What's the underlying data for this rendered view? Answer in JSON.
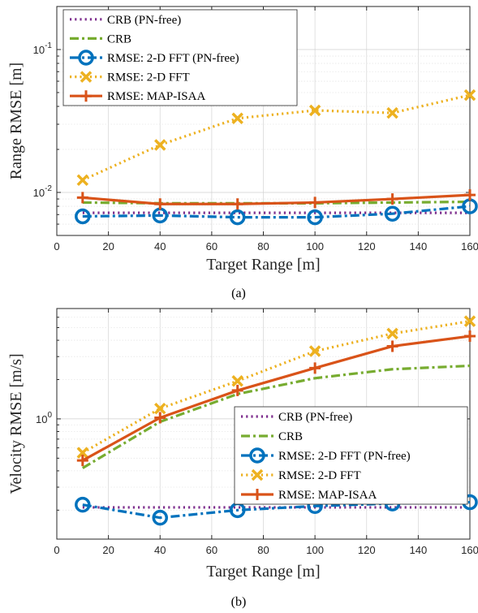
{
  "colors": {
    "crb_pnfree": "#7E2F8E",
    "crb": "#77AC30",
    "fft_pnfree": "#0072BD",
    "fft": "#EDB120",
    "map": "#D95319"
  },
  "chart_data": [
    {
      "type": "line",
      "caption": "(a)",
      "xlabel": "Target Range [m]",
      "ylabel": "Range RMSE [m]",
      "yscale": "log",
      "xlim": [
        0,
        160
      ],
      "ylim": [
        0.005,
        0.2
      ],
      "x_ticks": [
        0,
        20,
        40,
        60,
        80,
        100,
        120,
        140,
        160
      ],
      "x_tick_labels": [
        "0",
        "20",
        "40",
        "60",
        "80",
        "100",
        "120",
        "140",
        "160"
      ],
      "y_ticks": [
        0.01,
        0.1
      ],
      "y_tick_labels": [
        {
          "base": "10",
          "exp": "-2"
        },
        {
          "base": "10",
          "exp": "-1"
        }
      ],
      "grid": true,
      "legend_position": "top-left",
      "x": [
        10,
        40,
        70,
        100,
        130,
        160
      ],
      "series": [
        {
          "name": "CRB (PN-free)",
          "values": [
            0.0072,
            0.0072,
            0.0072,
            0.0072,
            0.0072,
            0.0072
          ],
          "style": "dotted",
          "marker": "none",
          "color": "crb_pnfree"
        },
        {
          "name": "CRB",
          "values": [
            0.0085,
            0.0084,
            0.0084,
            0.0084,
            0.0085,
            0.0086
          ],
          "style": "dashdot",
          "marker": "none",
          "color": "crb"
        },
        {
          "name": "RMSE: 2-D FFT (PN-free)",
          "values": [
            0.0068,
            0.0069,
            0.0067,
            0.0067,
            0.0071,
            0.008
          ],
          "style": "dashdot",
          "marker": "circle",
          "color": "fft_pnfree"
        },
        {
          "name": "RMSE: 2-D FFT",
          "values": [
            0.0122,
            0.0215,
            0.033,
            0.0375,
            0.036,
            0.048
          ],
          "style": "dotted",
          "marker": "x",
          "color": "fft"
        },
        {
          "name": "RMSE: MAP-ISAA",
          "values": [
            0.0092,
            0.0083,
            0.0083,
            0.0085,
            0.009,
            0.0096
          ],
          "style": "solid",
          "marker": "plus",
          "color": "map"
        }
      ]
    },
    {
      "type": "line",
      "caption": "(b)",
      "xlabel": "Target Range [m]",
      "ylabel": "Velocity RMSE [m/s]",
      "yscale": "log",
      "xlim": [
        0,
        160
      ],
      "ylim": [
        0.12,
        7
      ],
      "x_ticks": [
        0,
        20,
        40,
        60,
        80,
        100,
        120,
        140,
        160
      ],
      "x_tick_labels": [
        "0",
        "20",
        "40",
        "60",
        "80",
        "100",
        "120",
        "140",
        "160"
      ],
      "y_ticks": [
        1
      ],
      "y_tick_labels": [
        {
          "base": "10",
          "exp": "0"
        }
      ],
      "grid": true,
      "legend_position": "bottom-right",
      "x": [
        10,
        40,
        70,
        100,
        130,
        160
      ],
      "series": [
        {
          "name": "CRB (PN-free)",
          "values": [
            0.21,
            0.21,
            0.21,
            0.21,
            0.21,
            0.21
          ],
          "style": "dotted",
          "marker": "none",
          "color": "crb_pnfree"
        },
        {
          "name": "CRB",
          "values": [
            0.42,
            0.95,
            1.55,
            2.05,
            2.4,
            2.55
          ],
          "style": "dashdot",
          "marker": "none",
          "color": "crb"
        },
        {
          "name": "RMSE: 2-D FFT (PN-free)",
          "values": [
            0.22,
            0.175,
            0.2,
            0.215,
            0.225,
            0.23
          ],
          "style": "dashdot",
          "marker": "circle",
          "color": "fft_pnfree"
        },
        {
          "name": "RMSE: 2-D FFT",
          "values": [
            0.55,
            1.2,
            1.95,
            3.3,
            4.5,
            5.6
          ],
          "style": "dotted",
          "marker": "x",
          "color": "fft"
        },
        {
          "name": "RMSE: MAP-ISAA",
          "values": [
            0.48,
            1.02,
            1.65,
            2.45,
            3.6,
            4.3
          ],
          "style": "solid",
          "marker": "plus",
          "color": "map"
        }
      ]
    }
  ]
}
